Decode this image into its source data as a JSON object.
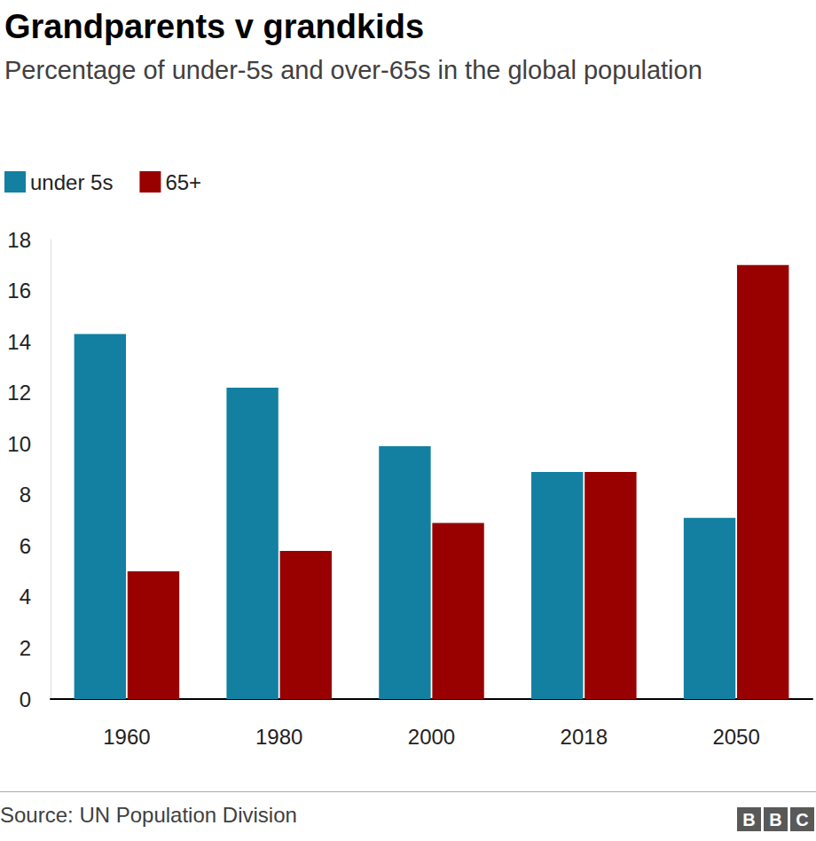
{
  "chart_data": {
    "type": "bar",
    "title": "Grandparents v grandkids",
    "subtitle": "Percentage of under-5s and over-65s in the global population",
    "categories": [
      "1960",
      "1980",
      "2000",
      "2018",
      "2050"
    ],
    "series": [
      {
        "name": "under 5s",
        "color": "#1380a1",
        "values": [
          14.3,
          12.2,
          9.9,
          8.9,
          7.1
        ]
      },
      {
        "name": "65+",
        "color": "#990000",
        "values": [
          5.0,
          5.8,
          6.9,
          8.9,
          17.0
        ]
      }
    ],
    "ylim": [
      0,
      18
    ],
    "yticks": [
      0,
      2,
      4,
      6,
      8,
      10,
      12,
      14,
      16,
      18
    ],
    "grid": false,
    "legend": "top-left",
    "source": "Source: UN Population Division",
    "credit": "BBC"
  }
}
